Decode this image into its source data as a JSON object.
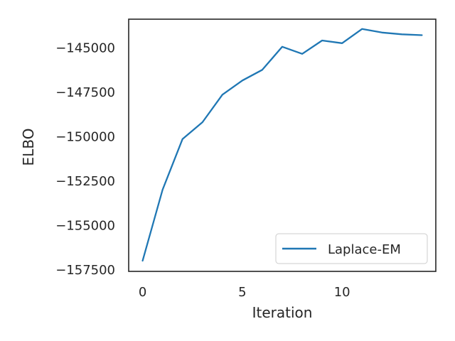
{
  "chart_data": {
    "type": "line",
    "title": "",
    "xlabel": "Iteration",
    "ylabel": "ELBO",
    "xlim": [
      -0.7,
      14.7
    ],
    "ylim": [
      -157600,
      -143400
    ],
    "xticks": [
      0,
      5,
      10
    ],
    "xtick_labels": [
      "0",
      "5",
      "10"
    ],
    "yticks": [
      -145000,
      -147500,
      -150000,
      -152500,
      -155000,
      -157500
    ],
    "ytick_labels": [
      "−145000",
      "−147500",
      "−150000",
      "−152500",
      "−155000",
      "−157500"
    ],
    "grid": false,
    "legend_position": "lower-right",
    "series": [
      {
        "name": "Laplace-EM",
        "color": "#1f77b4",
        "x": [
          0,
          1,
          2,
          3,
          4,
          5,
          6,
          7,
          8,
          9,
          10,
          11,
          12,
          13,
          14
        ],
        "y": [
          -157000,
          -153000,
          -150150,
          -149200,
          -147650,
          -146850,
          -146250,
          -144950,
          -145350,
          -144600,
          -144750,
          -143950,
          -144150,
          -144250,
          -144300
        ]
      }
    ]
  }
}
